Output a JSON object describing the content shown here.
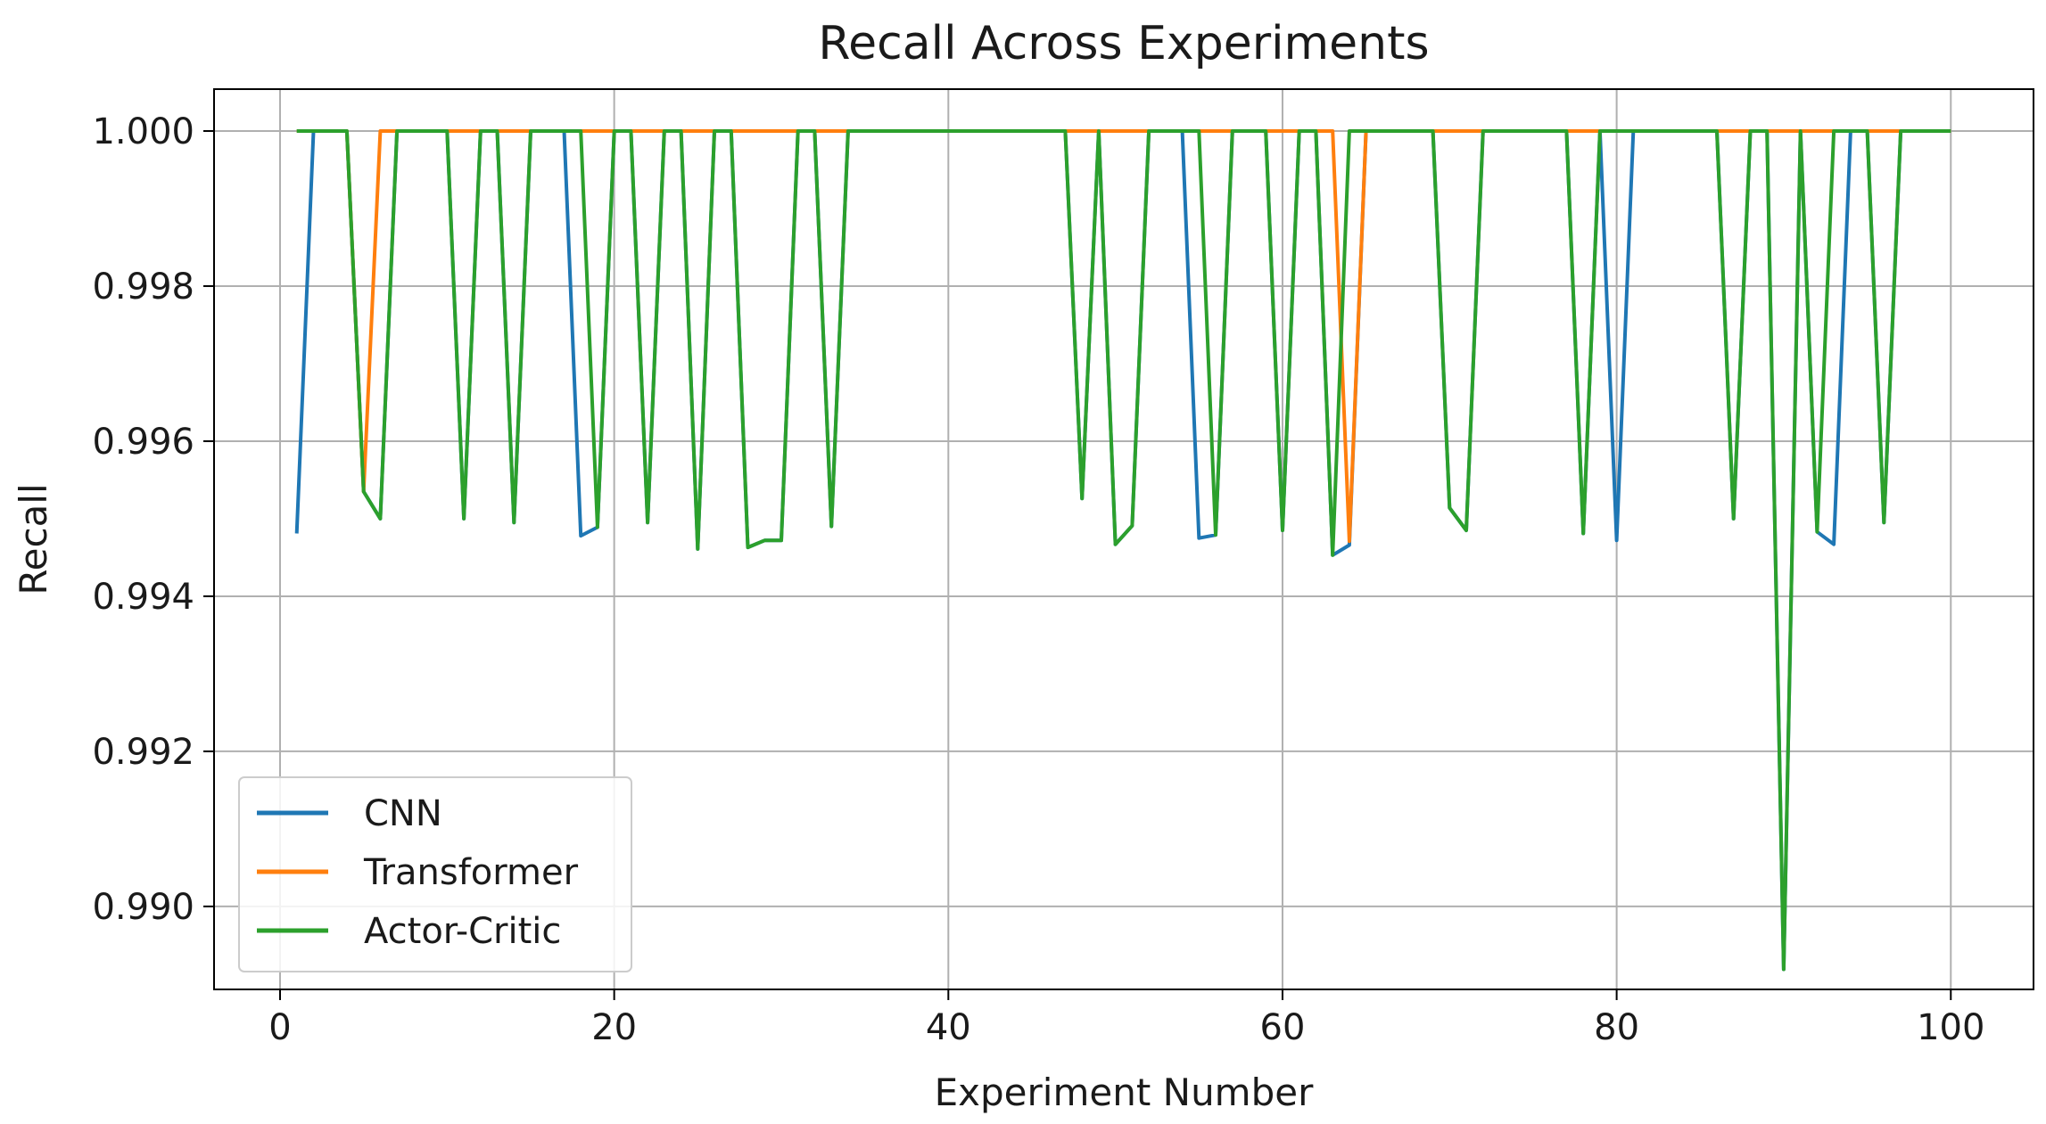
{
  "chart_data": {
    "type": "line",
    "title": "Recall Across Experiments",
    "xlabel": "Experiment Number",
    "ylabel": "Recall",
    "xlim": [
      -3.95,
      104.95
    ],
    "ylim": [
      0.98893,
      1.00054
    ],
    "xticks": [
      0,
      20,
      40,
      60,
      80,
      100
    ],
    "xtick_labels": [
      "0",
      "20",
      "40",
      "60",
      "80",
      "100"
    ],
    "yticks": [
      0.99,
      0.992,
      0.994,
      0.996,
      0.998,
      1.0
    ],
    "ytick_labels": [
      "0.990",
      "0.992",
      "0.994",
      "0.996",
      "0.998",
      "1.000"
    ],
    "grid": true,
    "legend_position": "lower-left",
    "x": [
      1,
      2,
      3,
      4,
      5,
      6,
      7,
      8,
      9,
      10,
      11,
      12,
      13,
      14,
      15,
      16,
      17,
      18,
      19,
      20,
      21,
      22,
      23,
      24,
      25,
      26,
      27,
      28,
      29,
      30,
      31,
      32,
      33,
      34,
      35,
      36,
      37,
      38,
      39,
      40,
      41,
      42,
      43,
      44,
      45,
      46,
      47,
      48,
      49,
      50,
      51,
      52,
      53,
      54,
      55,
      56,
      57,
      58,
      59,
      60,
      61,
      62,
      63,
      64,
      65,
      66,
      67,
      68,
      69,
      70,
      71,
      72,
      73,
      74,
      75,
      76,
      77,
      78,
      79,
      80,
      81,
      82,
      83,
      84,
      85,
      86,
      87,
      88,
      89,
      90,
      91,
      92,
      93,
      94,
      95,
      96,
      97,
      98,
      99,
      100
    ],
    "series": [
      {
        "name": "CNN",
        "color": "#1f77b4",
        "values": [
          0.99481,
          1,
          1,
          1,
          0.99535,
          0.995,
          1,
          1,
          1,
          1,
          0.995,
          1,
          1,
          0.99495,
          1,
          1,
          1,
          0.99478,
          0.99489,
          1,
          1,
          0.99495,
          1,
          1,
          0.99461,
          1,
          1,
          0.99463,
          0.99472,
          0.99472,
          1,
          1,
          0.9949,
          1,
          1,
          1,
          1,
          1,
          1,
          1,
          1,
          1,
          1,
          1,
          1,
          1,
          1,
          0.99526,
          1,
          0.99467,
          0.99491,
          1,
          1,
          1,
          0.99475,
          0.99479,
          1,
          1,
          1,
          0.99485,
          1,
          1,
          0.99453,
          0.99466,
          1,
          1,
          1,
          1,
          1,
          0.99514,
          0.99485,
          1,
          1,
          1,
          1,
          1,
          1,
          0.99481,
          1,
          0.99472,
          1,
          1,
          1,
          1,
          1,
          1,
          0.995,
          1,
          1,
          0.98919,
          1,
          0.99483,
          0.99467,
          1,
          1,
          0.99495,
          1,
          1,
          1,
          1
        ]
      },
      {
        "name": "Transformer",
        "color": "#ff7f0e",
        "values": [
          1,
          1,
          1,
          1,
          0.99535,
          1,
          1,
          1,
          1,
          1,
          1,
          1,
          1,
          1,
          1,
          1,
          1,
          1,
          1,
          1,
          1,
          1,
          1,
          1,
          1,
          1,
          1,
          1,
          1,
          1,
          1,
          1,
          1,
          1,
          1,
          1,
          1,
          1,
          1,
          1,
          1,
          1,
          1,
          1,
          1,
          1,
          1,
          1,
          1,
          1,
          1,
          1,
          1,
          1,
          1,
          1,
          1,
          1,
          1,
          1,
          1,
          1,
          1,
          0.99471,
          1,
          1,
          1,
          1,
          1,
          1,
          1,
          1,
          1,
          1,
          1,
          1,
          1,
          1,
          1,
          1,
          1,
          1,
          1,
          1,
          1,
          1,
          1,
          1,
          1,
          1,
          1,
          1,
          1,
          1,
          1,
          1,
          1,
          1,
          1,
          1
        ]
      },
      {
        "name": "Actor-Critic",
        "color": "#2ca02c",
        "values": [
          1,
          1,
          1,
          1,
          0.99535,
          0.995,
          1,
          1,
          1,
          1,
          0.995,
          1,
          1,
          0.99495,
          1,
          1,
          1,
          1,
          0.99489,
          1,
          1,
          0.99495,
          1,
          1,
          0.99461,
          1,
          1,
          0.99463,
          0.99472,
          0.99472,
          1,
          1,
          0.9949,
          1,
          1,
          1,
          1,
          1,
          1,
          1,
          1,
          1,
          1,
          1,
          1,
          1,
          1,
          0.99526,
          1,
          0.99467,
          0.99491,
          1,
          1,
          1,
          1,
          0.99479,
          1,
          1,
          1,
          0.99485,
          1,
          1,
          0.99453,
          1,
          1,
          1,
          1,
          1,
          1,
          0.99514,
          0.99485,
          1,
          1,
          1,
          1,
          1,
          1,
          0.99481,
          1,
          1,
          1,
          1,
          1,
          1,
          1,
          1,
          0.995,
          1,
          1,
          0.98919,
          1,
          0.99483,
          1,
          1,
          1,
          0.99495,
          1,
          1,
          1,
          1
        ]
      }
    ]
  }
}
